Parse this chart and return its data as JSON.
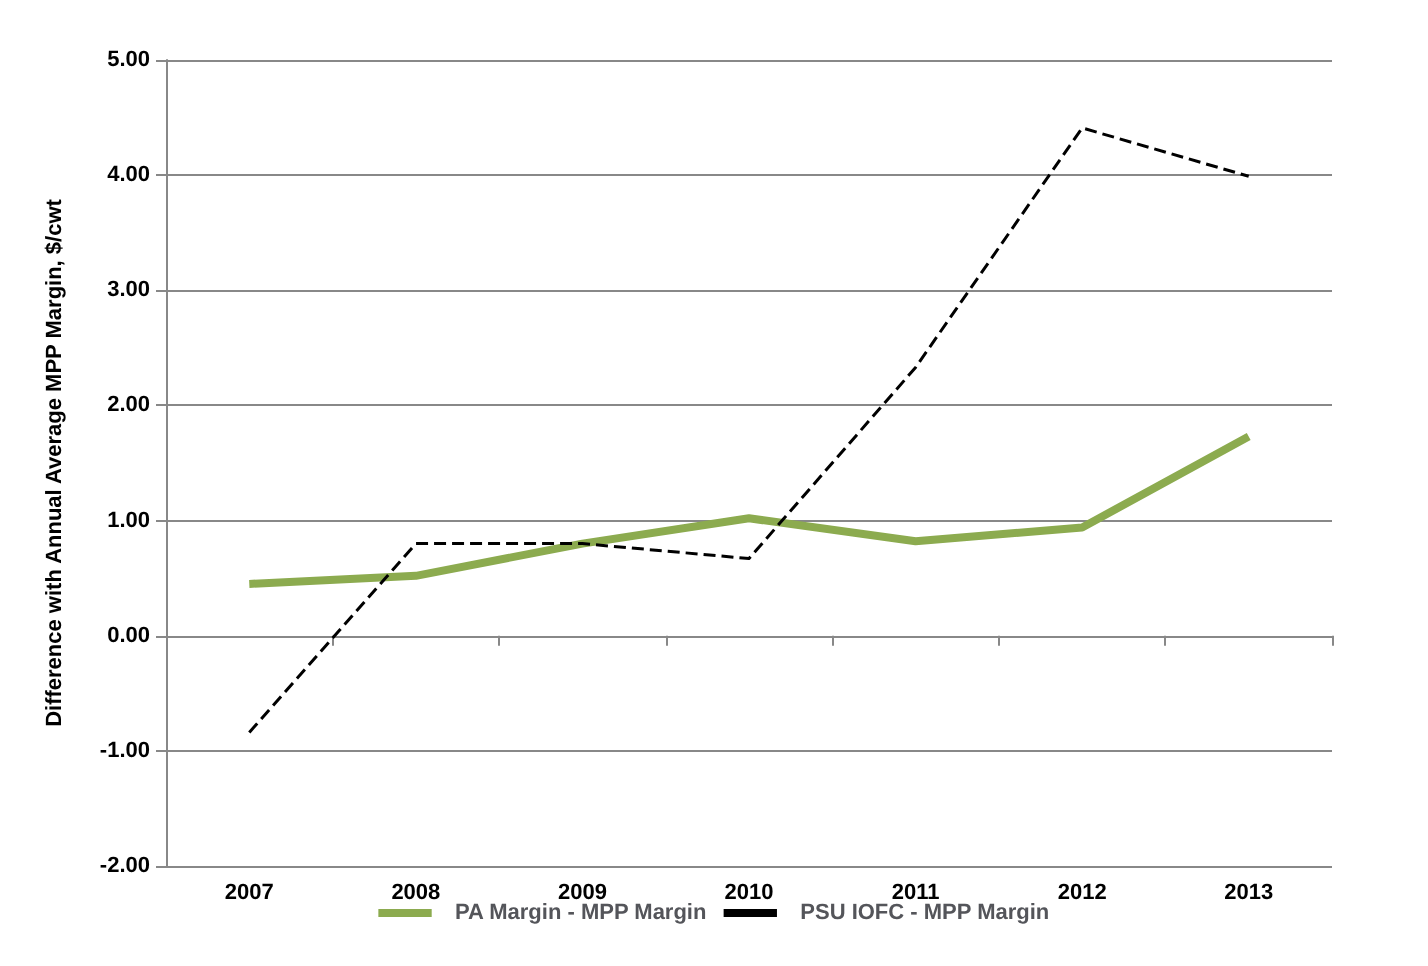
{
  "chart_data": {
    "type": "line",
    "ylabel": "Difference with Annual Average MPP Margin, $/cwt",
    "categories": [
      "2007",
      "2008",
      "2009",
      "2010",
      "2011",
      "2012",
      "2013"
    ],
    "series": [
      {
        "name": "PA Margin - MPP Margin",
        "color": "#8cab4f",
        "line_style": "solid",
        "values": [
          0.45,
          0.52,
          0.8,
          1.02,
          0.82,
          0.94,
          1.73
        ]
      },
      {
        "name": "PSU IOFC - MPP Margin",
        "color": "#000000",
        "line_style": "dashed",
        "values": [
          -0.84,
          0.8,
          0.8,
          0.67,
          2.33,
          4.41,
          3.99
        ]
      }
    ],
    "ylim": [
      -2,
      5
    ],
    "yticks": [
      {
        "value": -2,
        "label": "-2.00"
      },
      {
        "value": -1,
        "label": "-1.00"
      },
      {
        "value": 0,
        "label": "0.00"
      },
      {
        "value": 1,
        "label": "1.00"
      },
      {
        "value": 2,
        "label": "2.00"
      },
      {
        "value": 3,
        "label": "3.00"
      },
      {
        "value": 4,
        "label": "4.00"
      },
      {
        "value": 5,
        "label": "5.00"
      }
    ],
    "grid": "y",
    "legend": "bottom",
    "marker": "none"
  }
}
